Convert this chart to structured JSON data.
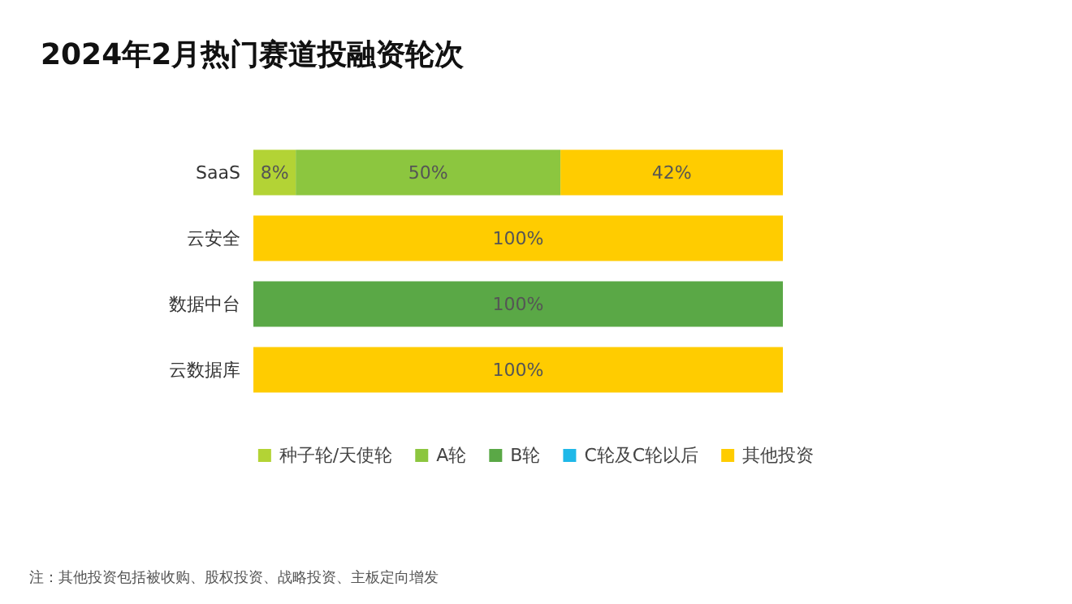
{
  "chart_data": {
    "type": "bar",
    "orientation": "horizontal",
    "stacked": true,
    "title": "2024年2月热门赛道投融资轮次",
    "categories": [
      "SaaS",
      "云安全",
      "数据中台",
      "云数据库"
    ],
    "series": [
      {
        "name": "种子轮/天使轮",
        "color": "#b3d335",
        "values": [
          8,
          null,
          null,
          null
        ],
        "value_labels": [
          "8%",
          null,
          null,
          null
        ]
      },
      {
        "name": "A轮",
        "color": "#8cc63f",
        "values": [
          50,
          null,
          null,
          null
        ],
        "value_labels": [
          "50%",
          null,
          null,
          null
        ]
      },
      {
        "name": "B轮",
        "color": "#5aa846",
        "values": [
          null,
          null,
          100,
          null
        ],
        "value_labels": [
          null,
          null,
          "100%",
          null
        ]
      },
      {
        "name": "C轮及C轮以后",
        "color": "#1fb8e8",
        "values": [
          null,
          null,
          null,
          null
        ],
        "value_labels": [
          null,
          null,
          null,
          null
        ]
      },
      {
        "name": "其他投资",
        "color": "#ffcc00",
        "values": [
          42,
          100,
          null,
          100
        ],
        "value_labels": [
          "42%",
          "100%",
          null,
          "100%"
        ]
      }
    ],
    "legend": "bottom",
    "annotations": [
      "注：其他投资包括被收购、股权投资、战略投资、主板定向增发"
    ]
  }
}
